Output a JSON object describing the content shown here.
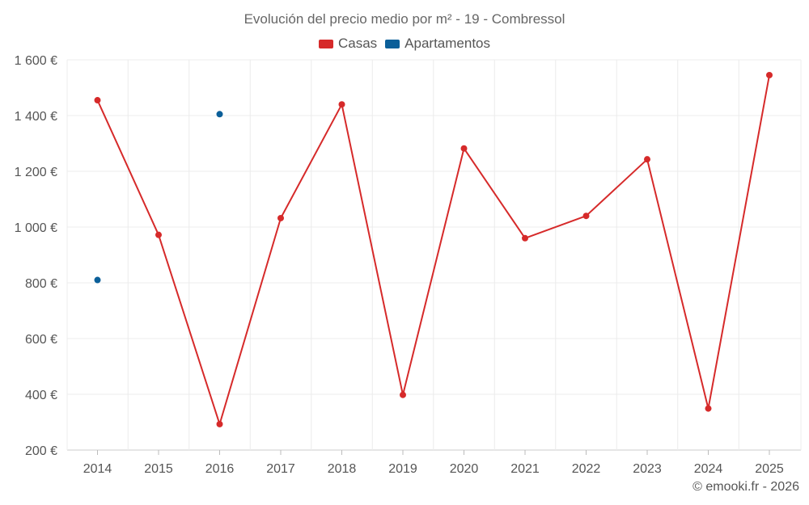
{
  "chart_data": {
    "type": "line",
    "title": "Evolución del precio medio por m² - 19 - Combressol",
    "categories": [
      "2014",
      "2015",
      "2016",
      "2017",
      "2018",
      "2019",
      "2020",
      "2021",
      "2022",
      "2023",
      "2024",
      "2025"
    ],
    "y_ticks": [
      "1 600 €",
      "1 400 €",
      "1 200 €",
      "1 000 €",
      "800 €",
      "600 €",
      "400 €",
      "200 €"
    ],
    "y_tick_values": [
      1600,
      1400,
      1200,
      1000,
      800,
      600,
      400,
      200
    ],
    "ylim": [
      200,
      1600
    ],
    "grid": true,
    "legend_position": "top-center",
    "series": [
      {
        "name": "Casas",
        "color": "#d62a2a",
        "values": [
          1455,
          972,
          293,
          1032,
          1440,
          398,
          1282,
          960,
          1040,
          1243,
          349,
          1545
        ]
      },
      {
        "name": "Apartamentos",
        "color": "#0b5f99",
        "values": [
          810,
          null,
          1405,
          null,
          null,
          null,
          null,
          null,
          null,
          null,
          null,
          null
        ]
      }
    ]
  },
  "credit": "© emooki.fr - 2026"
}
